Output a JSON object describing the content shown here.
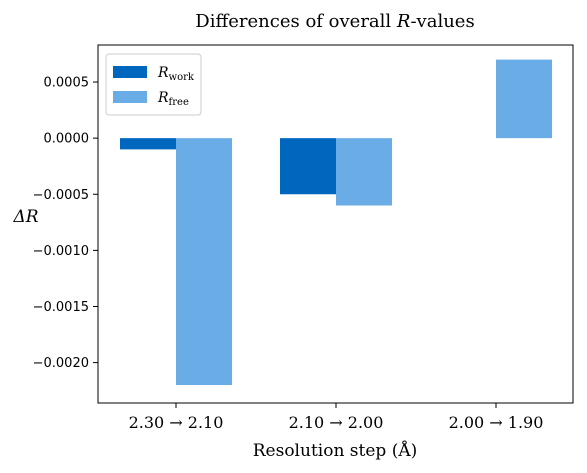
{
  "chart_data": {
    "type": "bar",
    "title_prefix": "Differences of overall ",
    "title_var": "R",
    "title_suffix": "-values",
    "xlabel": "Resolution step (Å)",
    "ylabel": "ΔR",
    "categories": [
      "2.30 → 2.10",
      "2.10 → 2.00",
      "2.00 → 1.90"
    ],
    "series": [
      {
        "name": "R",
        "name_sub": "work",
        "color": "#0067be",
        "values": [
          -0.0001,
          -0.0005,
          0.0
        ]
      },
      {
        "name": "R",
        "name_sub": "free",
        "color": "#6aade6",
        "values": [
          -0.0022,
          -0.0006,
          0.0007
        ]
      }
    ],
    "ylim": [
      -0.00236,
      0.00083
    ],
    "yticks": [
      0.0005,
      0.0,
      -0.0005,
      -0.001,
      -0.0015,
      -0.002
    ],
    "ytick_labels": [
      "0.0005",
      "0.0000",
      "−0.0005",
      "−0.0010",
      "−0.0015",
      "−0.0020"
    ],
    "grid": false,
    "legend_position": "top-left"
  }
}
